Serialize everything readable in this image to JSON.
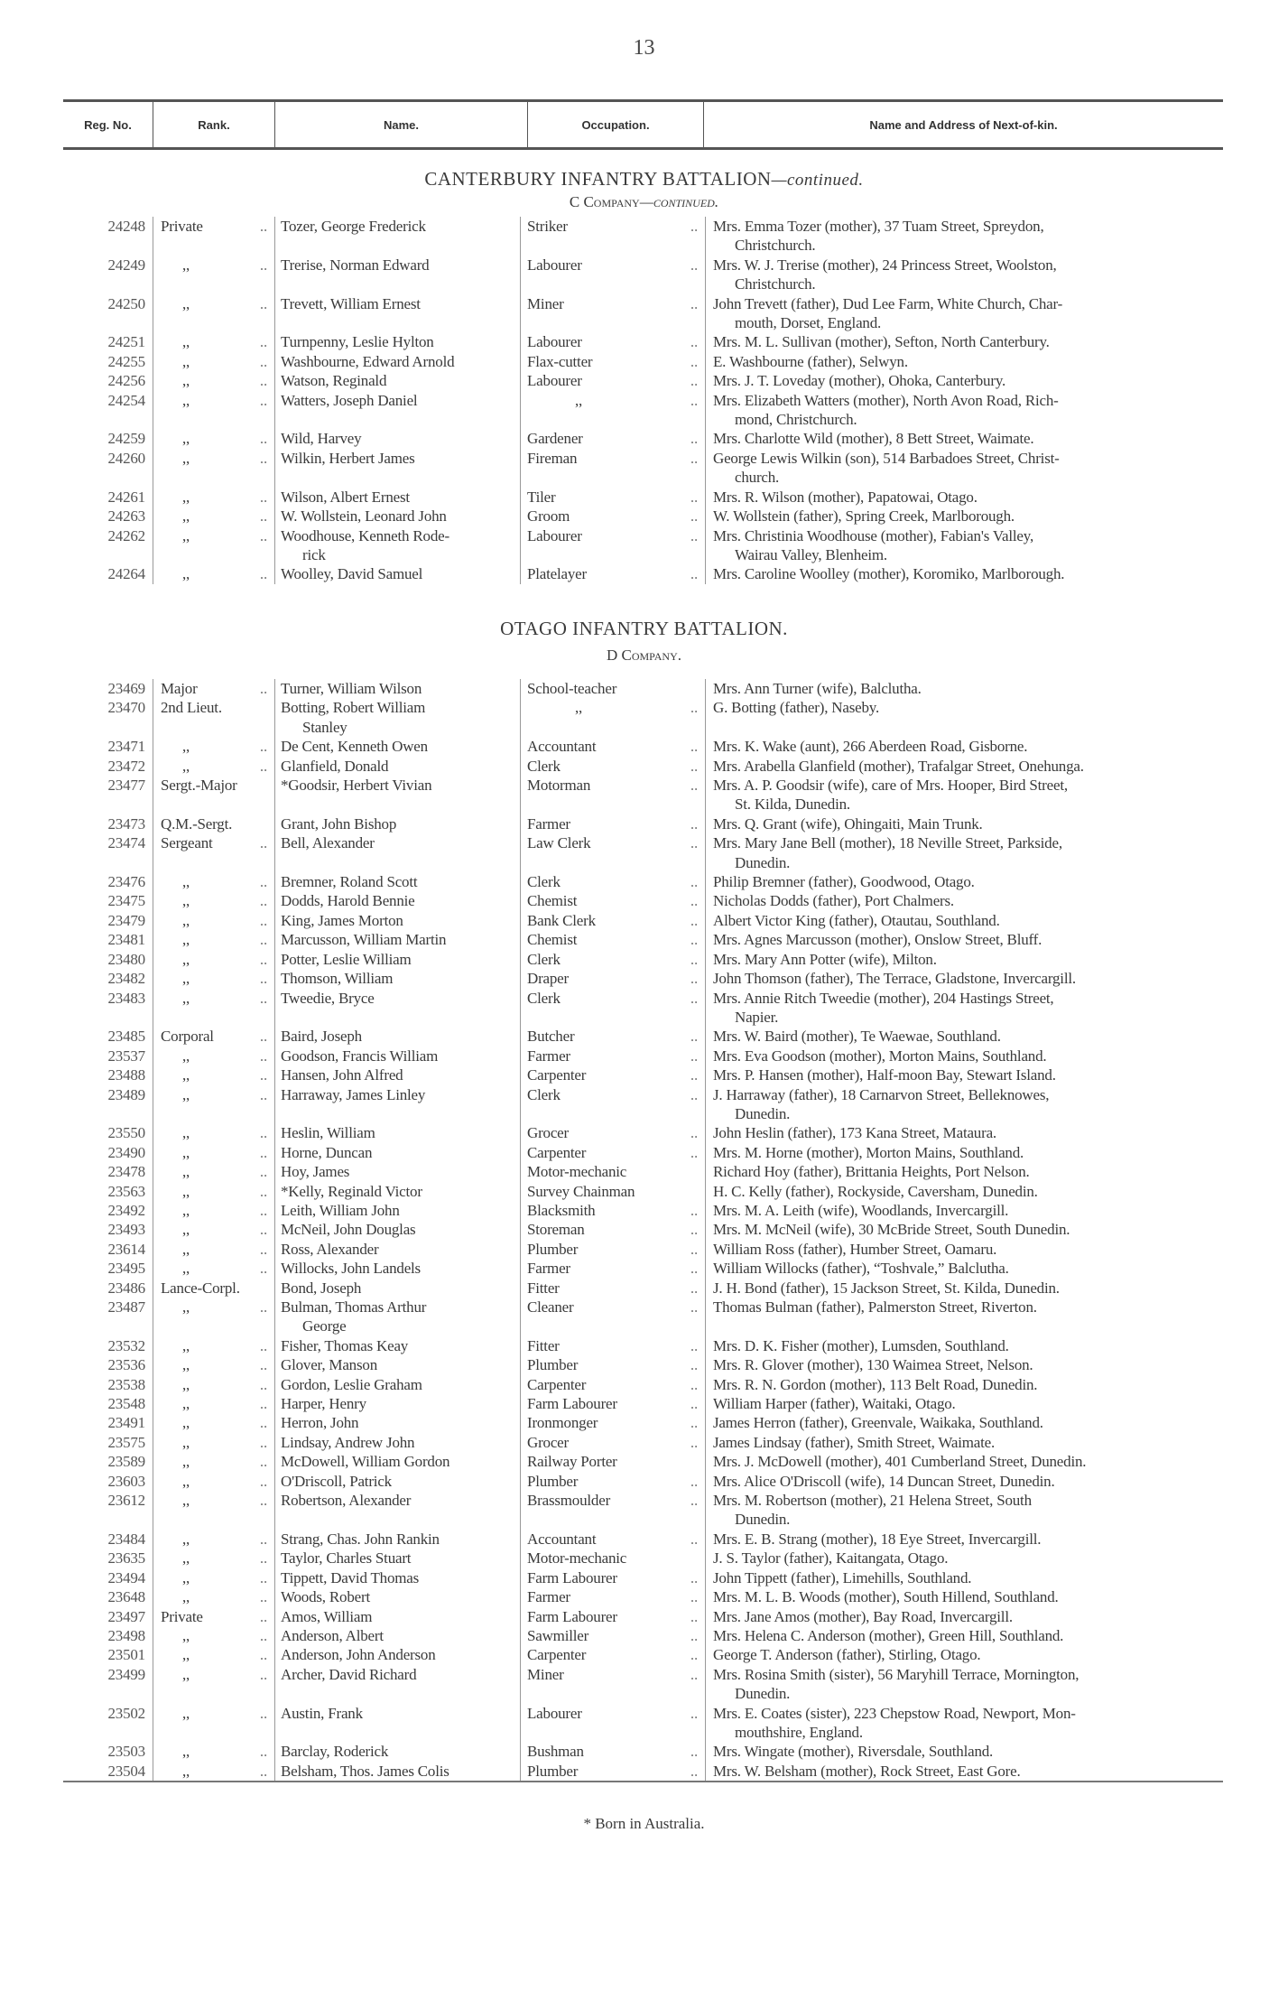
{
  "page_number": "13",
  "header": {
    "reg": "Reg. No.",
    "rank": "Rank.",
    "name": "Name.",
    "occupation": "Occupation.",
    "kin": "Name and Address of Next-of-kin."
  },
  "sections": [
    {
      "title": "CANTERBURY INFANTRY BATTALION",
      "title_suffix": "—continued.",
      "company": "C Company",
      "company_suffix": "—continued.",
      "rows": [
        [
          "24248",
          "Private",
          "Tozer, George Frederick",
          "Striker",
          "Mrs. Emma Tozer (mother), 37 Tuam Street, Spreydon,\nChristchurch."
        ],
        [
          "24249",
          ",,",
          "Trerise, Norman Edward",
          "Labourer",
          "Mrs. W. J. Trerise (mother), 24 Princess Street, Woolston,\nChristchurch."
        ],
        [
          "24250",
          ",,",
          "Trevett, William Ernest",
          "Miner",
          "John Trevett (father), Dud Lee Farm, White Church, Char-\nmouth, Dorset, England."
        ],
        [
          "24251",
          ",,",
          "Turnpenny, Leslie Hylton",
          "Labourer",
          "Mrs. M. L. Sullivan (mother), Sefton, North Canterbury."
        ],
        [
          "24255",
          ",,",
          "Washbourne, Edward Arnold",
          "Flax-cutter",
          "E. Washbourne (father), Selwyn."
        ],
        [
          "24256",
          ",,",
          "Watson, Reginald",
          "Labourer",
          "Mrs. J. T. Loveday (mother), Ohoka, Canterbury."
        ],
        [
          "24254",
          ",,",
          "Watters, Joseph Daniel",
          ",,",
          "Mrs. Elizabeth Watters (mother), North Avon Road, Rich-\nmond, Christchurch."
        ],
        [
          "24259",
          ",,",
          "Wild, Harvey",
          "Gardener",
          "Mrs. Charlotte Wild (mother), 8 Bett Street, Waimate."
        ],
        [
          "24260",
          ",,",
          "Wilkin, Herbert James",
          "Fireman",
          "George Lewis Wilkin (son), 514 Barbadoes Street, Christ-\nchurch."
        ],
        [
          "24261",
          ",,",
          "Wilson, Albert Ernest",
          "Tiler",
          "Mrs. R. Wilson (mother), Papatowai, Otago."
        ],
        [
          "24263",
          ",,",
          "W. Wollstein, Leonard John",
          "Groom",
          "W. Wollstein (father), Spring Creek, Marlborough."
        ],
        [
          "24262",
          ",,",
          "Woodhouse, Kenneth Rode-\nrick",
          "Labourer",
          "Mrs. Christinia Woodhouse (mother), Fabian's Valley,\nWairau Valley, Blenheim."
        ],
        [
          "24264",
          ",,",
          "Woolley, David Samuel",
          "Platelayer",
          "Mrs. Caroline Woolley (mother), Koromiko, Marlborough."
        ]
      ]
    },
    {
      "title": "OTAGO INFANTRY BATTALION.",
      "title_suffix": "",
      "company": "D Company.",
      "company_suffix": "",
      "rows": [
        [
          "23469",
          "Major",
          "Turner, William Wilson",
          "School-teacher",
          "Mrs. Ann Turner (wife), Balclutha."
        ],
        [
          "23470",
          "2nd Lieut.",
          "Botting, Robert William\nStanley",
          ",,",
          "G. Botting (father), Naseby."
        ],
        [
          "23471",
          ",,",
          "De Cent, Kenneth Owen",
          "Accountant",
          "Mrs. K. Wake (aunt), 266 Aberdeen Road, Gisborne."
        ],
        [
          "23472",
          ",,",
          "Glanfield, Donald",
          "Clerk",
          "Mrs. Arabella Glanfield (mother), Trafalgar Street, Onehunga."
        ],
        [
          "23477",
          "Sergt.-Major",
          "*Goodsir, Herbert Vivian",
          "Motorman",
          "Mrs. A. P. Goodsir (wife), care of Mrs. Hooper, Bird Street,\nSt. Kilda, Dunedin."
        ],
        [
          "23473",
          "Q.M.-Sergt.",
          "Grant, John Bishop",
          "Farmer",
          "Mrs. Q. Grant (wife), Ohingaiti, Main Trunk."
        ],
        [
          "23474",
          "Sergeant",
          "Bell, Alexander",
          "Law Clerk",
          "Mrs. Mary Jane Bell (mother), 18 Neville Street, Parkside,\nDunedin."
        ],
        [
          "23476",
          ",,",
          "Bremner, Roland Scott",
          "Clerk",
          "Philip Bremner (father), Goodwood, Otago."
        ],
        [
          "23475",
          ",,",
          "Dodds, Harold Bennie",
          "Chemist",
          "Nicholas Dodds (father), Port Chalmers."
        ],
        [
          "23479",
          ",,",
          "King, James Morton",
          "Bank Clerk",
          "Albert Victor King (father), Otautau, Southland."
        ],
        [
          "23481",
          ",,",
          "Marcusson, William Martin",
          "Chemist",
          "Mrs. Agnes Marcusson (mother), Onslow Street, Bluff."
        ],
        [
          "23480",
          ",,",
          "Potter, Leslie William",
          "Clerk",
          "Mrs. Mary Ann Potter (wife), Milton."
        ],
        [
          "23482",
          ",,",
          "Thomson, William",
          "Draper",
          "John Thomson (father), The Terrace, Gladstone, Invercargill."
        ],
        [
          "23483",
          ",,",
          "Tweedie, Bryce",
          "Clerk",
          "Mrs. Annie Ritch Tweedie (mother), 204 Hastings Street,\nNapier."
        ],
        [
          "23485",
          "Corporal",
          "Baird, Joseph",
          "Butcher",
          "Mrs. W. Baird (mother), Te Waewae, Southland."
        ],
        [
          "23537",
          ",,",
          "Goodson, Francis William",
          "Farmer",
          "Mrs. Eva Goodson (mother), Morton Mains, Southland."
        ],
        [
          "23488",
          ",,",
          "Hansen, John Alfred",
          "Carpenter",
          "Mrs. P. Hansen (mother), Half-moon Bay, Stewart Island."
        ],
        [
          "23489",
          ",,",
          "Harraway, James Linley",
          "Clerk",
          "J. Harraway (father), 18 Carnarvon Street, Belleknowes,\nDunedin."
        ],
        [
          "23550",
          ",,",
          "Heslin, William",
          "Grocer",
          "John Heslin (father), 173 Kana Street, Mataura."
        ],
        [
          "23490",
          ",,",
          "Horne, Duncan",
          "Carpenter",
          "Mrs. M. Horne (mother), Morton Mains, Southland."
        ],
        [
          "23478",
          ",,",
          "Hoy, James",
          "Motor-mechanic",
          "Richard Hoy (father), Brittania Heights, Port Nelson."
        ],
        [
          "23563",
          ",,",
          "*Kelly, Reginald Victor",
          "Survey Chainman",
          "H. C. Kelly (father), Rockyside, Caversham, Dunedin."
        ],
        [
          "23492",
          ",,",
          "Leith, William John",
          "Blacksmith",
          "Mrs. M. A. Leith (wife), Woodlands, Invercargill."
        ],
        [
          "23493",
          ",,",
          "McNeil, John Douglas",
          "Storeman",
          "Mrs. M. McNeil (wife), 30 McBride Street, South Dunedin."
        ],
        [
          "23614",
          ",,",
          "Ross, Alexander",
          "Plumber",
          "William Ross (father), Humber Street, Oamaru."
        ],
        [
          "23495",
          ",,",
          "Willocks, John Landels",
          "Farmer",
          "William Willocks (father), “Toshvale,” Balclutha."
        ],
        [
          "23486",
          "Lance-Corpl.",
          "Bond, Joseph",
          "Fitter",
          "J. H. Bond (father), 15 Jackson Street, St. Kilda, Dunedin."
        ],
        [
          "23487",
          ",,",
          "Bulman, Thomas Arthur\nGeorge",
          "Cleaner",
          "Thomas Bulman (father), Palmerston Street, Riverton."
        ],
        [
          "23532",
          ",,",
          "Fisher, Thomas Keay",
          "Fitter",
          "Mrs. D. K. Fisher (mother), Lumsden, Southland."
        ],
        [
          "23536",
          ",,",
          "Glover, Manson",
          "Plumber",
          "Mrs. R. Glover (mother), 130 Waimea Street, Nelson."
        ],
        [
          "23538",
          ",,",
          "Gordon, Leslie Graham",
          "Carpenter",
          "Mrs. R. N. Gordon (mother), 113 Belt Road, Dunedin."
        ],
        [
          "23548",
          ",,",
          "Harper, Henry",
          "Farm Labourer",
          "William Harper (father), Waitaki, Otago."
        ],
        [
          "23491",
          ",,",
          "Herron, John",
          "Ironmonger",
          "James Herron (father), Greenvale, Waikaka, Southland."
        ],
        [
          "23575",
          ",,",
          "Lindsay, Andrew John",
          "Grocer",
          "James Lindsay (father), Smith Street, Waimate."
        ],
        [
          "23589",
          ",,",
          "McDowell, William Gordon",
          "Railway Porter",
          "Mrs. J. McDowell (mother), 401 Cumberland Street, Dunedin."
        ],
        [
          "23603",
          ",,",
          "O'Driscoll, Patrick",
          "Plumber",
          "Mrs. Alice O'Driscoll (wife), 14 Duncan Street, Dunedin."
        ],
        [
          "23612",
          ",,",
          "Robertson, Alexander",
          "Brassmoulder",
          "Mrs. M. Robertson (mother), 21 Helena Street, South\nDunedin."
        ],
        [
          "23484",
          ",,",
          "Strang, Chas. John Rankin",
          "Accountant",
          "Mrs. E. B. Strang (mother), 18 Eye Street, Invercargill."
        ],
        [
          "23635",
          ",,",
          "Taylor, Charles Stuart",
          "Motor-mechanic",
          "J. S. Taylor (father), Kaitangata, Otago."
        ],
        [
          "23494",
          ",,",
          "Tippett, David Thomas",
          "Farm Labourer",
          "John Tippett (father), Limehills, Southland."
        ],
        [
          "23648",
          ",,",
          "Woods, Robert",
          "Farmer",
          "Mrs. M. L. B. Woods (mother), South Hillend, Southland."
        ],
        [
          "23497",
          "Private",
          "Amos, William",
          "Farm Labourer",
          "Mrs. Jane Amos (mother), Bay Road, Invercargill."
        ],
        [
          "23498",
          ",,",
          "Anderson, Albert",
          "Sawmiller",
          "Mrs. Helena C. Anderson (mother), Green Hill, Southland."
        ],
        [
          "23501",
          ",,",
          "Anderson, John Anderson",
          "Carpenter",
          "George T. Anderson (father), Stirling, Otago."
        ],
        [
          "23499",
          ",,",
          "Archer, David Richard",
          "Miner",
          "Mrs. Rosina Smith (sister), 56 Maryhill Terrace, Mornington,\nDunedin."
        ],
        [
          "23502",
          ",,",
          "Austin, Frank",
          "Labourer",
          "Mrs. E. Coates (sister), 223 Chepstow Road, Newport, Mon-\nmouthshire, England."
        ],
        [
          "23503",
          ",,",
          "Barclay, Roderick",
          "Bushman",
          "Mrs. Wingate (mother), Riversdale, Southland."
        ],
        [
          "23504",
          ",,",
          "Belsham, Thos. James Colis",
          "Plumber",
          "Mrs. W. Belsham (mother), Rock Street, East Gore."
        ]
      ]
    }
  ],
  "footnote": "* Born in Australia."
}
